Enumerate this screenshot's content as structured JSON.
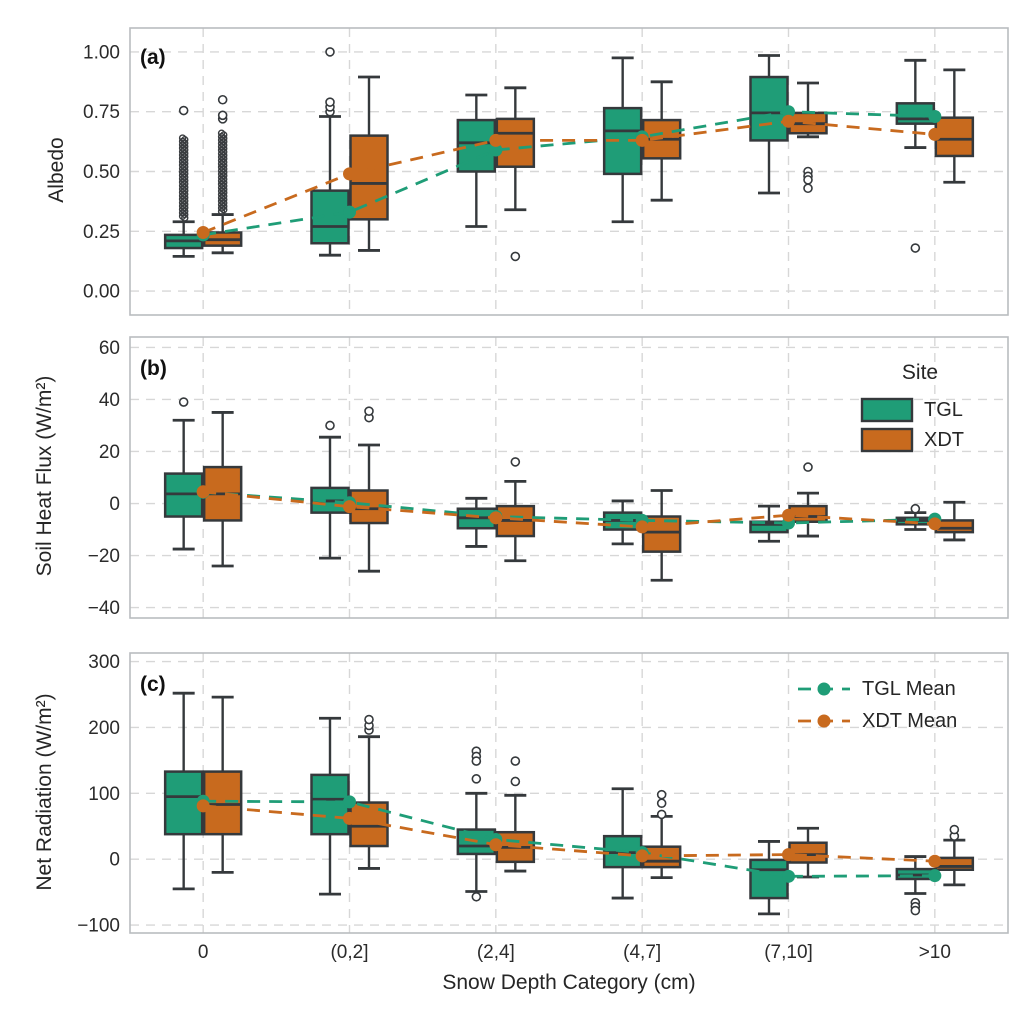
{
  "chart_data": {
    "type": "boxplot",
    "xlabel": "Snow Depth Category (cm)",
    "categories": [
      "0",
      "(0,2]",
      "(2,4]",
      "(4,7]",
      "(7,10]",
      ">10"
    ],
    "colors": {
      "tgl": "#1f9d77",
      "xdt": "#c86a1e",
      "box_edge": "#35393c",
      "grid": "#d7d7d7",
      "spine": "#b9bcbf",
      "text": "#2b2b2b"
    },
    "legend_site": {
      "title": "Site",
      "entries": [
        {
          "label": "TGL"
        },
        {
          "label": "XDT"
        }
      ]
    },
    "legend_means": {
      "entries": [
        {
          "label": "TGL Mean"
        },
        {
          "label": "XDT Mean"
        }
      ]
    },
    "panels": [
      {
        "panel_label": "(a)",
        "ylabel": "Albedo",
        "ylim": [
          -0.1,
          1.1
        ],
        "yticks": [
          0.0,
          0.25,
          0.5,
          0.75,
          1.0
        ],
        "ytick_labels": [
          "0.00",
          "0.25",
          "0.50",
          "0.75",
          "1.00"
        ],
        "series": [
          {
            "name": "TGL",
            "q1": [
              0.18,
              0.2,
              0.5,
              0.49,
              0.63,
              0.7
            ],
            "median": [
              0.21,
              0.27,
              0.62,
              0.67,
              0.745,
              0.72
            ],
            "q3": [
              0.235,
              0.42,
              0.715,
              0.765,
              0.895,
              0.785
            ],
            "whisker_low": [
              0.145,
              0.15,
              0.27,
              0.29,
              0.41,
              0.6
            ],
            "whisker_high": [
              0.29,
              0.73,
              0.82,
              0.975,
              0.985,
              0.965
            ],
            "mean": [
              0.235,
              0.33,
              0.59,
              0.645,
              0.75,
              0.73
            ],
            "outliers": [
              [
                0.755
              ],
              [
                0.75,
                0.77,
                0.79,
                1.0
              ],
              [],
              [],
              [],
              [
                0.18
              ]
            ],
            "outlier_bands": [
              [
                0.3,
                0.64
              ],
              null,
              null,
              null,
              null,
              null
            ]
          },
          {
            "name": "XDT",
            "q1": [
              0.19,
              0.3,
              0.52,
              0.555,
              0.66,
              0.565
            ],
            "median": [
              0.215,
              0.45,
              0.66,
              0.635,
              0.7,
              0.635
            ],
            "q3": [
              0.245,
              0.65,
              0.72,
              0.715,
              0.745,
              0.725
            ],
            "whisker_low": [
              0.16,
              0.17,
              0.34,
              0.38,
              0.645,
              0.455
            ],
            "whisker_high": [
              0.32,
              0.895,
              0.85,
              0.875,
              0.87,
              0.925
            ],
            "mean": [
              0.245,
              0.49,
              0.63,
              0.63,
              0.71,
              0.655
            ],
            "outliers": [
              [
                0.72,
                0.735,
                0.8
              ],
              [],
              [
                0.145
              ],
              [],
              [
                0.5,
                0.48,
                0.465,
                0.43
              ],
              []
            ],
            "outlier_bands": [
              [
                0.33,
                0.66
              ],
              null,
              null,
              null,
              null,
              null
            ]
          }
        ]
      },
      {
        "panel_label": "(b)",
        "ylabel": "Soil Heat Flux (W/m²)",
        "ylim": [
          -44,
          64
        ],
        "yticks": [
          -40,
          -20,
          0,
          20,
          40,
          60
        ],
        "ytick_labels": [
          "−40",
          "−20",
          "0",
          "20",
          "40",
          "60"
        ],
        "series": [
          {
            "name": "TGL",
            "q1": [
              -5,
              -3.5,
              -9.5,
              -10,
              -11,
              -8
            ],
            "median": [
              3.7,
              1,
              -5.5,
              -6.5,
              -8,
              -6.5
            ],
            "q3": [
              11.5,
              6,
              -2,
              -3.5,
              -7,
              -5.5
            ],
            "whisker_low": [
              -17.5,
              -21,
              -16.5,
              -15.5,
              -14.5,
              -10
            ],
            "whisker_high": [
              32,
              25.5,
              2,
              1,
              -1,
              -3.5
            ],
            "mean": [
              4.3,
              0.3,
              -5,
              -6.5,
              -7.5,
              -6
            ],
            "outliers": [
              [
                39
              ],
              [
                30
              ],
              [],
              [],
              [],
              [
                -2
              ]
            ],
            "outlier_bands": [
              null,
              null,
              null,
              null,
              null,
              null
            ]
          },
          {
            "name": "XDT",
            "q1": [
              -6.5,
              -7.5,
              -12.5,
              -18.5,
              -7,
              -11
            ],
            "median": [
              3.7,
              -2,
              -6.5,
              -11,
              -5,
              -9.5
            ],
            "q3": [
              14,
              5,
              -1,
              -5,
              -1,
              -6.5
            ],
            "whisker_low": [
              -24,
              -26,
              -22,
              -29.5,
              -12.5,
              -14
            ],
            "whisker_high": [
              35,
              22.5,
              8.5,
              5,
              4,
              0.5
            ],
            "mean": [
              4.5,
              -1.2,
              -5.5,
              -9,
              -4.5,
              -7.8
            ],
            "outliers": [
              [],
              [
                33,
                35.5
              ],
              [
                16
              ],
              [],
              [
                14
              ],
              []
            ],
            "outlier_bands": [
              null,
              null,
              null,
              null,
              null,
              null
            ]
          }
        ]
      },
      {
        "panel_label": "(c)",
        "ylabel": "Net Radiation (W/m²)",
        "ylim": [
          -112,
          313
        ],
        "yticks": [
          -100,
          0,
          100,
          200,
          300
        ],
        "ytick_labels": [
          "−100",
          "0",
          "100",
          "200",
          "300"
        ],
        "series": [
          {
            "name": "TGL",
            "q1": [
              38,
              38,
              8,
              -12,
              -59,
              -30
            ],
            "median": [
              95,
              91,
              20,
              10,
              -16,
              -24
            ],
            "q3": [
              133,
              128,
              45,
              35,
              -1,
              -15
            ],
            "whisker_low": [
              -45,
              -53,
              -49,
              -59,
              -83,
              -52
            ],
            "whisker_high": [
              252,
              214,
              100,
              107,
              27,
              4
            ],
            "mean": [
              88,
              87,
              30,
              10,
              -26,
              -25
            ],
            "outliers": [
              [],
              [],
              [
                164,
                156,
                149,
                122,
                -57
              ],
              [],
              [],
              [
                -66,
                -72,
                -78
              ]
            ],
            "outlier_bands": [
              null,
              null,
              null,
              null,
              null,
              null
            ]
          },
          {
            "name": "XDT",
            "q1": [
              38,
              20,
              -4,
              -12,
              -5,
              -16
            ],
            "median": [
              83,
              50,
              18,
              -3,
              7,
              -11
            ],
            "q3": [
              133,
              86,
              41,
              19,
              25,
              2
            ],
            "whisker_low": [
              -20,
              -14,
              -18,
              -28,
              -27,
              -39
            ],
            "whisker_high": [
              246,
              186,
              97,
              65,
              47,
              29
            ],
            "mean": [
              81,
              62,
              22,
              5,
              7,
              -3
            ],
            "outliers": [
              [],
              [
                196,
                203,
                212
              ],
              [
                118,
                149
              ],
              [
                68,
                85,
                98
              ],
              [],
              [
                35,
                45
              ]
            ],
            "outlier_bands": [
              null,
              null,
              null,
              null,
              null,
              null
            ]
          }
        ]
      }
    ]
  }
}
